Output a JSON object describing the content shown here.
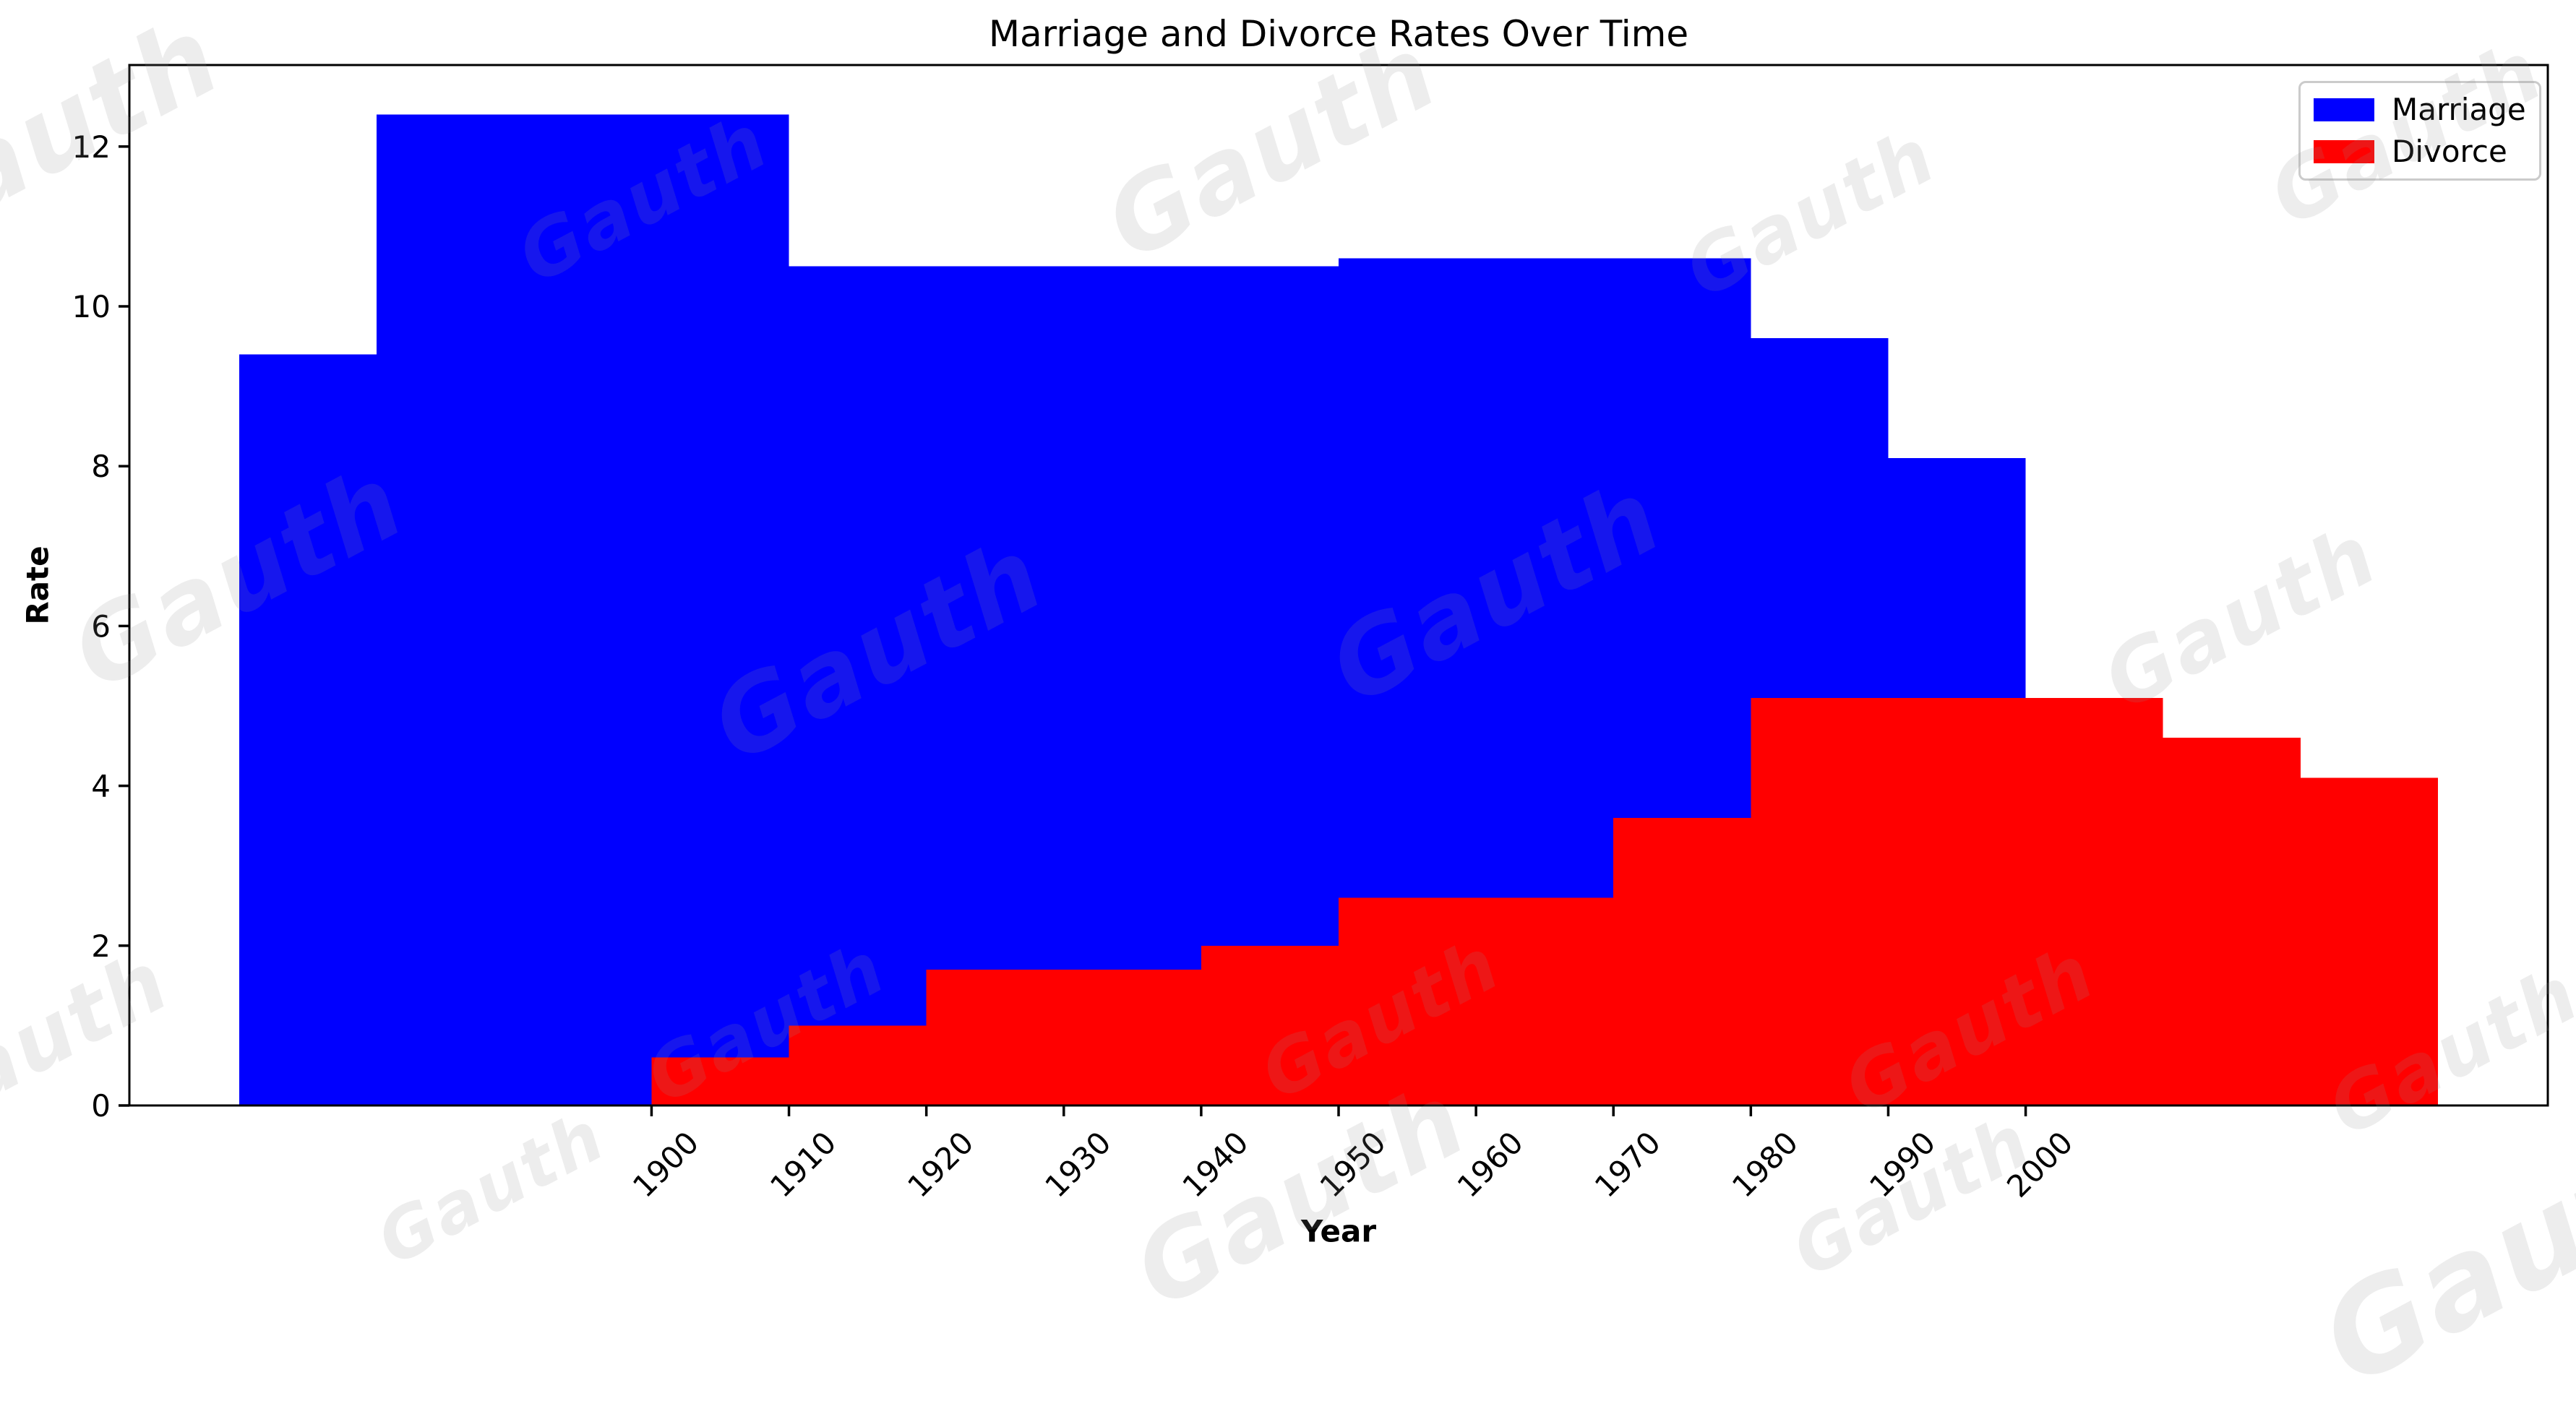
{
  "watermark": {
    "text": "Gauth"
  },
  "legend": {
    "position": "upper right",
    "items": [
      {
        "label": "Marriage",
        "color": "#0000ff"
      },
      {
        "label": "Divorce",
        "color": "#ff0000"
      }
    ]
  },
  "chart_data": {
    "type": "bar",
    "title": "Marriage and Divorce Rates Over Time",
    "xlabel": "Year",
    "ylabel": "Rate",
    "xlim": [
      1862,
      2038
    ],
    "ylim": [
      0,
      13.02
    ],
    "x_ticks": [
      1900,
      1910,
      1920,
      1930,
      1940,
      1950,
      1960,
      1970,
      1980,
      1990,
      2000
    ],
    "y_ticks": [
      0,
      2,
      4,
      6,
      8,
      10,
      12
    ],
    "grid": false,
    "axis_color": "#000000",
    "series": [
      {
        "name": "Marriage",
        "color": "#0000ff",
        "steps": [
          {
            "from": 1870,
            "to": 1880,
            "value": 9.4
          },
          {
            "from": 1880,
            "to": 1910,
            "value": 12.4
          },
          {
            "from": 1910,
            "to": 1950,
            "value": 10.5
          },
          {
            "from": 1950,
            "to": 1980,
            "value": 10.6
          },
          {
            "from": 1980,
            "to": 1990,
            "value": 9.6
          },
          {
            "from": 1990,
            "to": 2000,
            "value": 8.1
          }
        ]
      },
      {
        "name": "Divorce",
        "color": "#ff0000",
        "steps": [
          {
            "from": 1900,
            "to": 1910,
            "value": 0.6
          },
          {
            "from": 1910,
            "to": 1920,
            "value": 1.0
          },
          {
            "from": 1920,
            "to": 1940,
            "value": 1.7
          },
          {
            "from": 1940,
            "to": 1950,
            "value": 2.0
          },
          {
            "from": 1950,
            "to": 1970,
            "value": 2.6
          },
          {
            "from": 1970,
            "to": 1980,
            "value": 3.6
          },
          {
            "from": 1980,
            "to": 2010,
            "value": 5.1
          },
          {
            "from": 2010,
            "to": 2020,
            "value": 4.6
          },
          {
            "from": 2020,
            "to": 2030,
            "value": 4.1
          }
        ]
      }
    ]
  }
}
